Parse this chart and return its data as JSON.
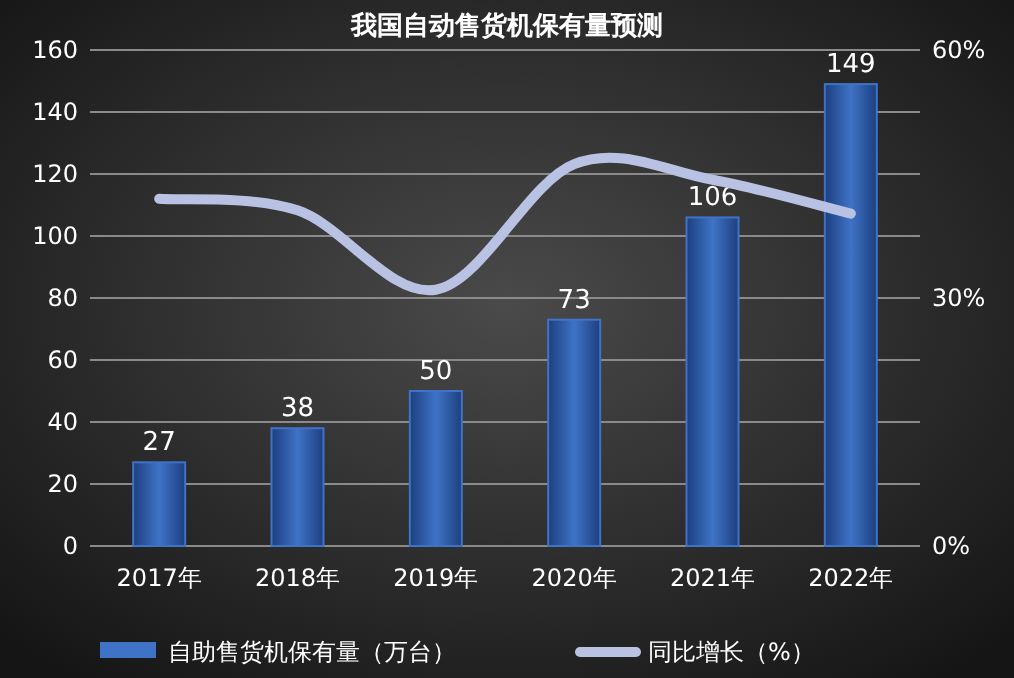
{
  "chart_data": {
    "type": "bar",
    "title": "我国自动售货机保有量预测",
    "categories": [
      "2017年",
      "2018年",
      "2019年",
      "2020年",
      "2021年",
      "2022年"
    ],
    "series": [
      {
        "name": "自助售货机保有量（万台）",
        "color": "#3f73c6",
        "values": [
          27,
          38,
          50,
          73,
          106,
          149
        ],
        "value_labels": [
          "27",
          "38",
          "50",
          "73",
          "106",
          "149"
        ]
      },
      {
        "name": "同比增长（%）",
        "type": "line",
        "axis": "y2",
        "color": "#b9c2e3",
        "values": [
          42,
          40.6,
          31,
          46.2,
          44.3,
          40.2
        ]
      }
    ],
    "ylim": [
      0,
      160
    ],
    "yticks": [
      0,
      20,
      40,
      60,
      80,
      100,
      120,
      140,
      160
    ],
    "y2lim": [
      0,
      60
    ],
    "y2ticks": [
      {
        "value": 0,
        "label": "0%"
      },
      {
        "value": 30,
        "label": "30%"
      },
      {
        "value": 60,
        "label": "60%"
      }
    ],
    "grid": "y",
    "legend": "bottom",
    "marker": "none",
    "line_style": "solid"
  }
}
